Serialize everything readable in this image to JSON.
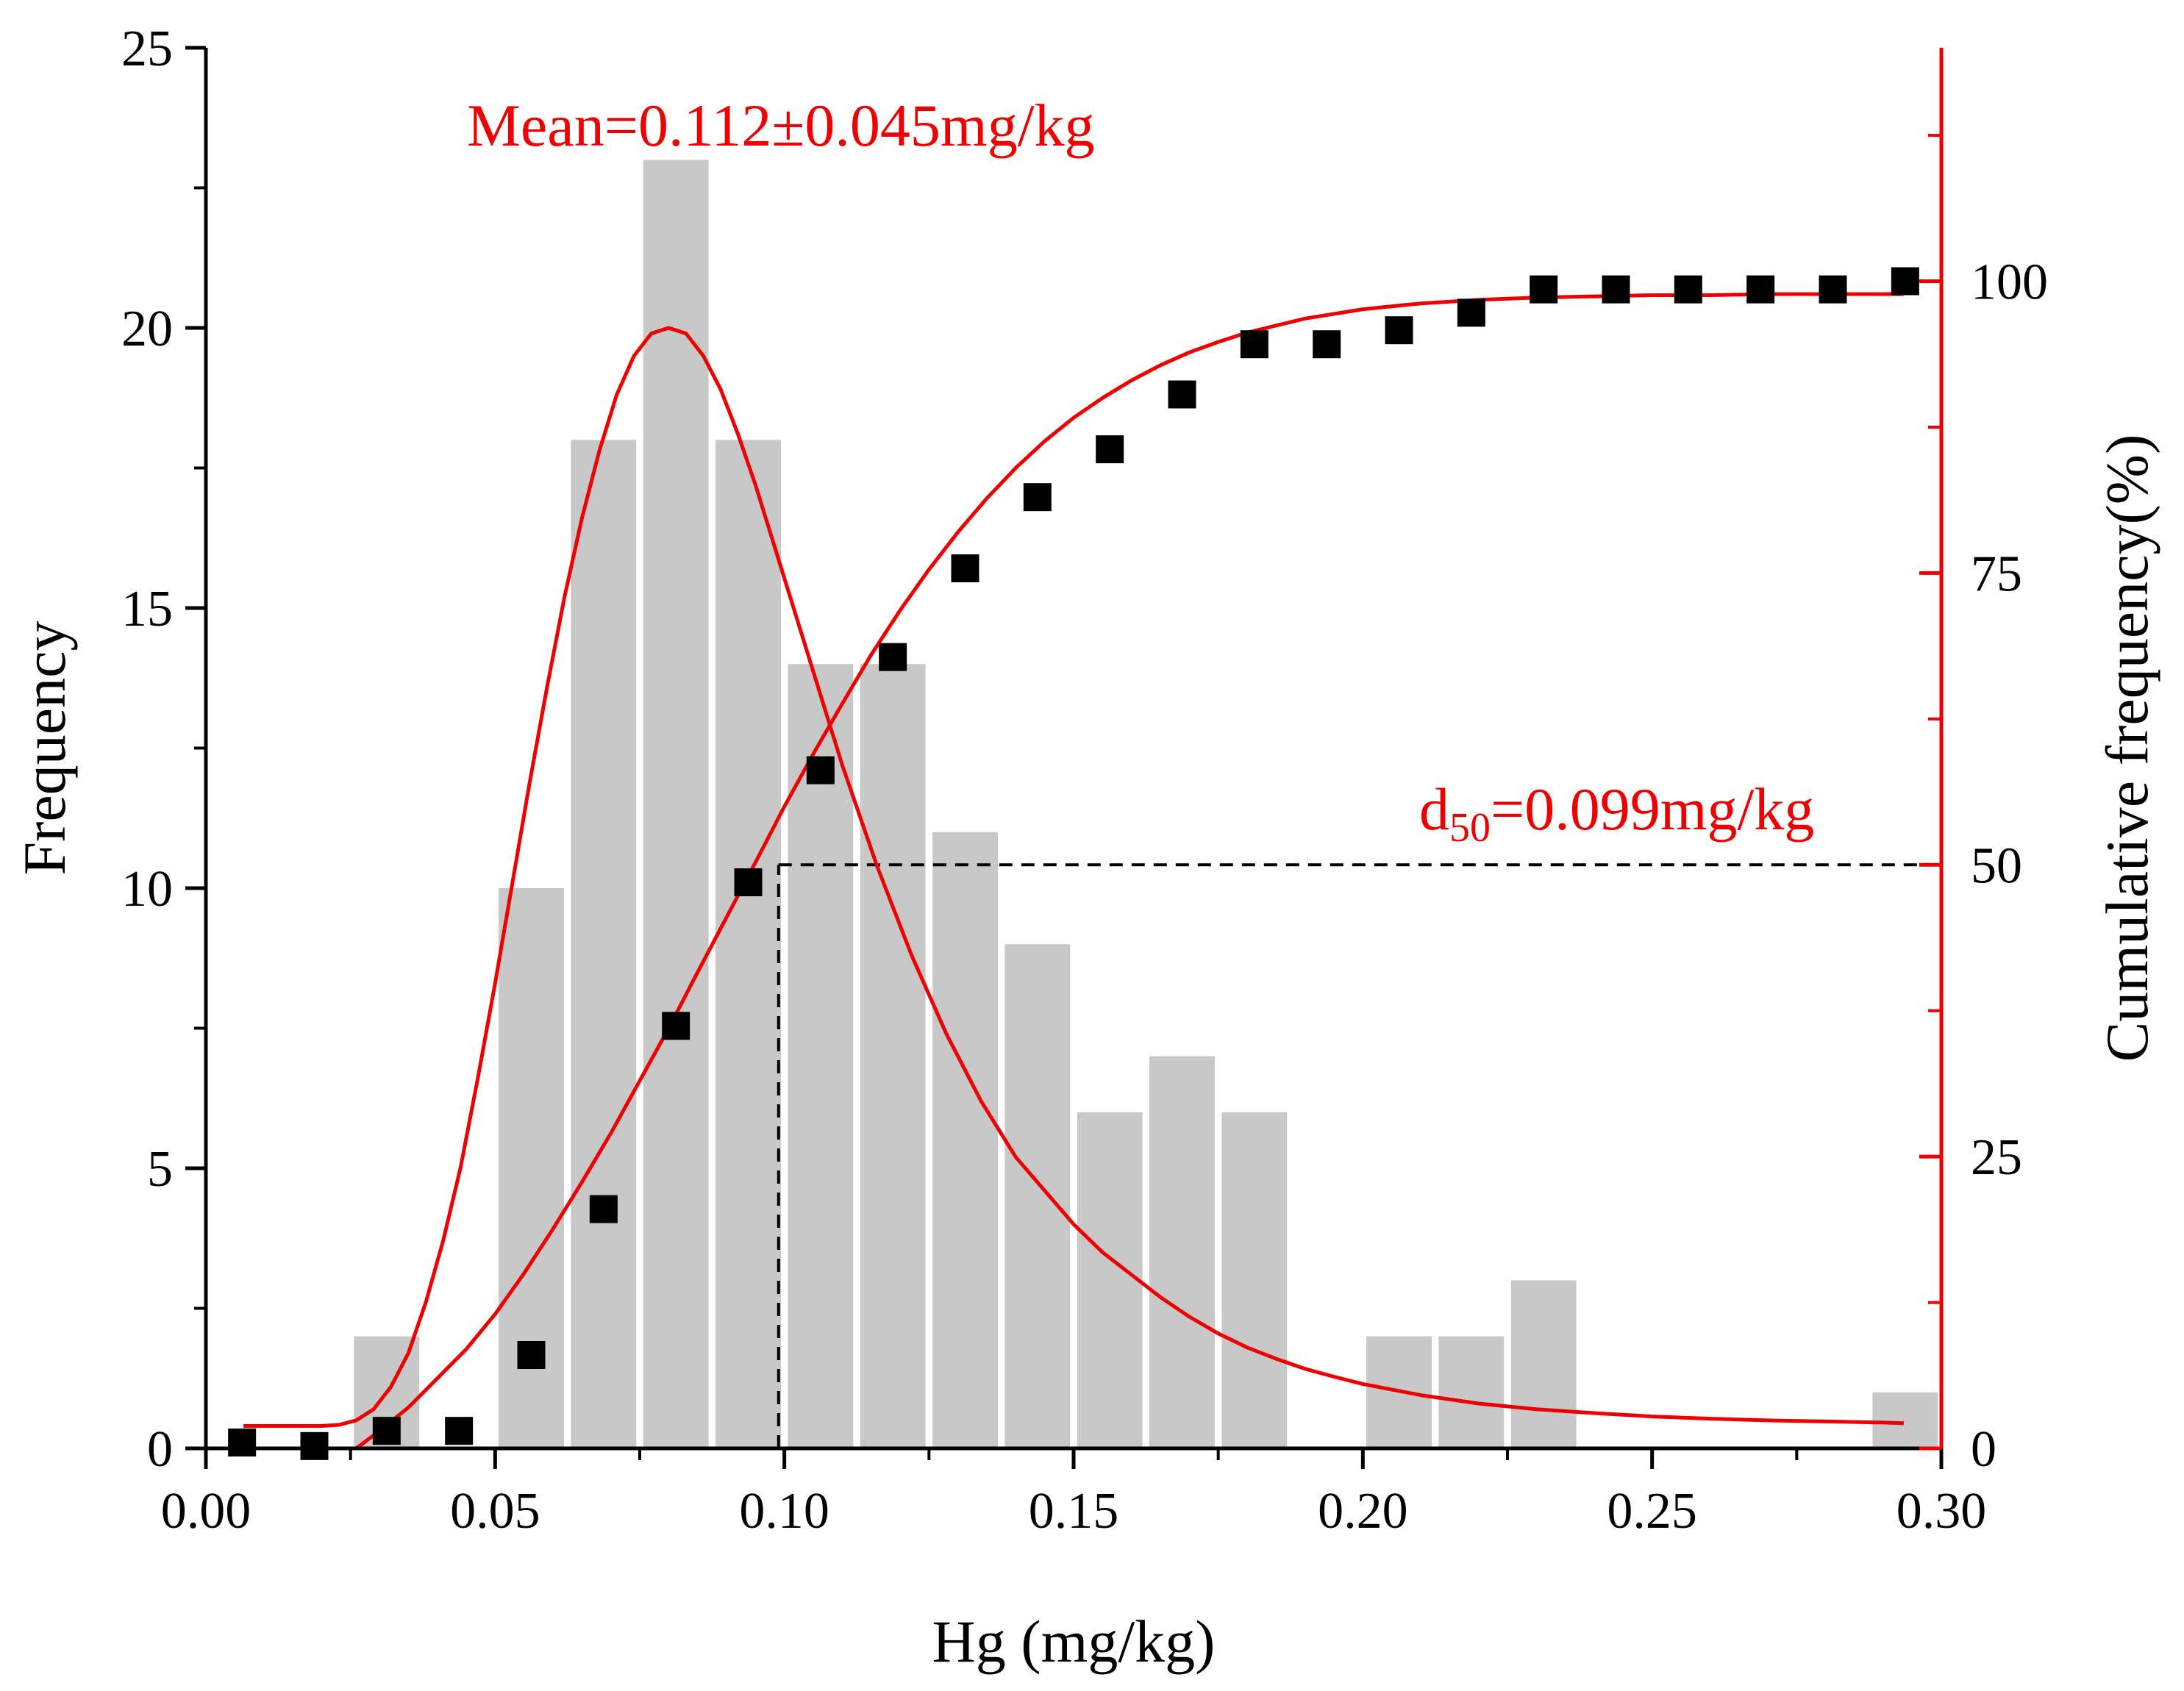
{
  "chart_data": {
    "type": "bar",
    "xlabel": "Hg (mg/kg)",
    "ylabel": "Frequency",
    "y2label": "Cumulative frequency(%)",
    "xlim": [
      0,
      0.3
    ],
    "ylim": [
      0,
      25
    ],
    "y2lim": [
      0,
      120
    ],
    "x_ticks": [
      "0.00",
      "0.05",
      "0.10",
      "0.15",
      "0.20",
      "0.25",
      "0.30"
    ],
    "y_ticks": [
      "0",
      "5",
      "10",
      "15",
      "20",
      "25"
    ],
    "y2_ticks": [
      "0",
      "25",
      "50",
      "75",
      "100"
    ],
    "histogram": {
      "bin_width": 0.0125,
      "bin_centers": [
        0.03125,
        0.05625,
        0.06875,
        0.08125,
        0.09375,
        0.10625,
        0.11875,
        0.13125,
        0.14375,
        0.15625,
        0.16875,
        0.18125,
        0.20625,
        0.21875,
        0.23125,
        0.29375
      ],
      "values": [
        2,
        10,
        18,
        23,
        18,
        14,
        14,
        11,
        9,
        6,
        7,
        6,
        2,
        2,
        3,
        1
      ],
      "color": "#c8c8c8"
    },
    "cumulative_points": {
      "x": [
        0.00625,
        0.01875,
        0.03125,
        0.04375,
        0.05625,
        0.06875,
        0.08125,
        0.09375,
        0.10625,
        0.11875,
        0.13125,
        0.14375,
        0.15625,
        0.16875,
        0.18125,
        0.19375,
        0.20625,
        0.21875,
        0.23125,
        0.24375,
        0.25625,
        0.26875,
        0.28125,
        0.29375
      ],
      "y": [
        0.5,
        0.2,
        1.5,
        1.5,
        8,
        20.5,
        36.2,
        48.5,
        58.1,
        67.8,
        75.4,
        81.5,
        85.6,
        90.3,
        94.6,
        94.6,
        95.8,
        97.3,
        99.3,
        99.3,
        99.3,
        99.3,
        99.3,
        100
      ],
      "color": "#000000"
    },
    "frequency_curve": {
      "x": [
        0.0065,
        0.02,
        0.023,
        0.026,
        0.029,
        0.032,
        0.035,
        0.038,
        0.041,
        0.044,
        0.047,
        0.05,
        0.053,
        0.056,
        0.059,
        0.062,
        0.065,
        0.068,
        0.071,
        0.074,
        0.077,
        0.08,
        0.083,
        0.086,
        0.089,
        0.092,
        0.095,
        0.098,
        0.101,
        0.104,
        0.107,
        0.11,
        0.113,
        0.116,
        0.119,
        0.122,
        0.125,
        0.128,
        0.131,
        0.134,
        0.137,
        0.14,
        0.145,
        0.15,
        0.155,
        0.16,
        0.165,
        0.17,
        0.175,
        0.18,
        0.185,
        0.19,
        0.195,
        0.2,
        0.21,
        0.22,
        0.23,
        0.24,
        0.25,
        0.26,
        0.27,
        0.28,
        0.29,
        0.2935
      ],
      "y": [
        0.4,
        0.4,
        0.42,
        0.5,
        0.7,
        1.1,
        1.7,
        2.6,
        3.7,
        5.0,
        6.6,
        8.3,
        10.1,
        11.9,
        13.6,
        15.2,
        16.6,
        17.8,
        18.8,
        19.5,
        19.9,
        20.0,
        19.9,
        19.5,
        18.9,
        18.1,
        17.2,
        16.2,
        15.2,
        14.2,
        13.2,
        12.2,
        11.3,
        10.4,
        9.6,
        8.8,
        8.1,
        7.4,
        6.8,
        6.2,
        5.7,
        5.2,
        4.6,
        4.0,
        3.5,
        3.1,
        2.7,
        2.35,
        2.05,
        1.8,
        1.6,
        1.42,
        1.28,
        1.15,
        0.95,
        0.8,
        0.7,
        0.63,
        0.57,
        0.53,
        0.5,
        0.48,
        0.46,
        0.45
      ],
      "axis": "left",
      "color": "#ee0000"
    },
    "cumulative_curve": {
      "x": [
        0.026,
        0.03,
        0.035,
        0.04,
        0.045,
        0.05,
        0.055,
        0.06,
        0.065,
        0.07,
        0.075,
        0.08,
        0.085,
        0.09,
        0.095,
        0.1,
        0.105,
        0.11,
        0.115,
        0.12,
        0.125,
        0.13,
        0.135,
        0.14,
        0.145,
        0.15,
        0.155,
        0.16,
        0.165,
        0.17,
        0.175,
        0.18,
        0.185,
        0.19,
        0.2,
        0.21,
        0.22,
        0.23,
        0.24,
        0.25,
        0.26,
        0.27,
        0.28,
        0.29,
        0.2935
      ],
      "y": [
        0,
        1.5,
        3.5,
        6,
        8.5,
        11.5,
        15,
        18.8,
        22.8,
        27,
        31.5,
        36,
        40.8,
        45.5,
        50.2,
        55,
        59.5,
        63.8,
        68,
        71.8,
        75.3,
        78.5,
        81.4,
        84,
        86.3,
        88.3,
        90,
        91.5,
        92.8,
        93.9,
        94.8,
        95.6,
        96.2,
        96.8,
        97.6,
        98.1,
        98.4,
        98.6,
        98.7,
        98.8,
        98.8,
        98.9,
        98.9,
        98.9,
        98.9
      ],
      "axis": "right",
      "color": "#ee0000"
    },
    "d50_guide": {
      "x": 0.099,
      "y2": 50
    },
    "annotations": {
      "mean_text": "Mean=0.112±0.045mg/kg",
      "d50_sub": "50",
      "d50_prefix": "d",
      "d50_value": "=0.099mg/kg",
      "color": "#ee0000"
    },
    "legend": "none",
    "grid": false
  }
}
